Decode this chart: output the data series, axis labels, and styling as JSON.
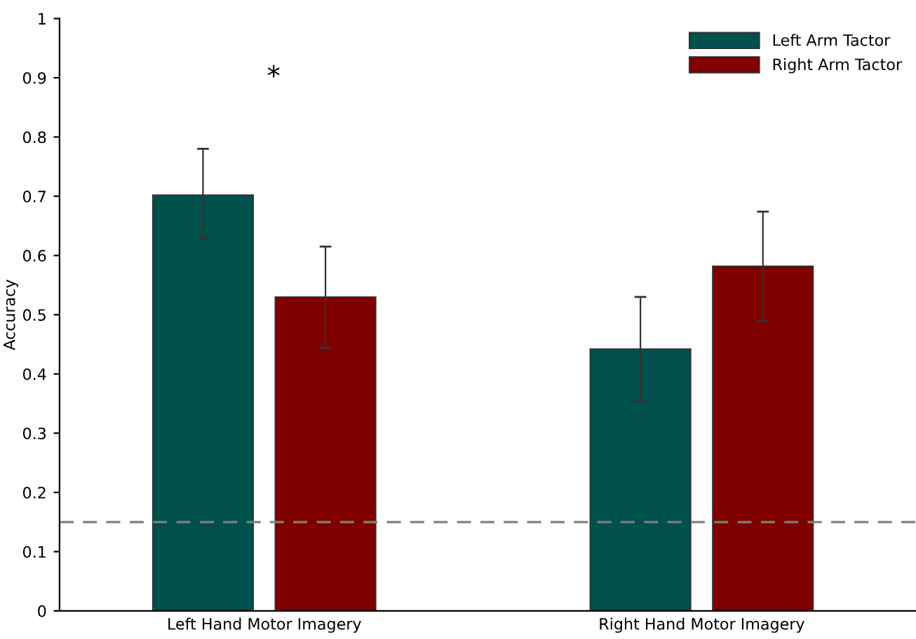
{
  "chart_data": {
    "type": "bar",
    "ylabel": "Accuracy",
    "categories": [
      "Left Hand Motor Imagery",
      "Right Hand Motor Imagery"
    ],
    "series": [
      {
        "name": "Left Arm Tactor",
        "color": "#00504b",
        "values": [
          0.702,
          0.442
        ],
        "errors": [
          [
            0.629,
            0.78
          ],
          [
            0.355,
            0.53
          ]
        ]
      },
      {
        "name": "Right Arm Tactor",
        "color": "#800000",
        "values": [
          0.53,
          0.582
        ],
        "errors": [
          [
            0.444,
            0.615
          ],
          [
            0.489,
            0.674
          ]
        ]
      }
    ],
    "ylim": [
      0,
      1
    ],
    "yticks": [
      0,
      0.1,
      0.2,
      0.3,
      0.4,
      0.5,
      0.6,
      0.7,
      0.8,
      0.9,
      1
    ],
    "ref_lines": [
      {
        "axis": "y",
        "value": 0.15,
        "color": "#808080",
        "line_style": "dashed"
      }
    ],
    "annotations": [
      "*"
    ],
    "legend": "top right",
    "grid": false
  }
}
